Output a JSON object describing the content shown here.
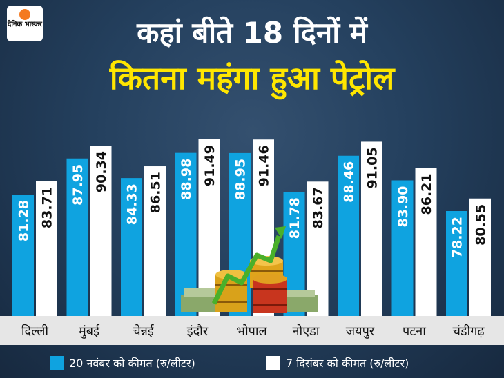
{
  "brand": {
    "logo_text": "दैनिक भास्कर"
  },
  "title_line1": "कहां बीते 18 दिनों में",
  "title_line2": "कितना महंगा हुआ पेट्रोल",
  "colors": {
    "series1": "#0fa3e0",
    "series2": "#ffffff",
    "title_accent": "#ffe600",
    "background": "#1e3451"
  },
  "chart_data": {
    "type": "bar",
    "categories": [
      "दिल्ली",
      "मुंबई",
      "चेन्नई",
      "इंदौर",
      "भोपाल",
      "नोएडा",
      "जयपुर",
      "पटना",
      "चंडीगढ़"
    ],
    "series": [
      {
        "name": "20 नवंबर को कीमत (रु/लीटर)",
        "values": [
          81.28,
          87.95,
          84.33,
          88.98,
          88.95,
          81.78,
          88.46,
          83.9,
          78.22
        ]
      },
      {
        "name": "7 दिसंबर को कीमत (रु/लीटर)",
        "values": [
          83.71,
          90.34,
          86.51,
          91.49,
          91.46,
          83.67,
          91.05,
          86.21,
          80.55
        ]
      }
    ],
    "value_labels": [
      [
        "81.28",
        "87.95",
        "84.33",
        "88.98",
        "88.95",
        "81.78",
        "88.46",
        "83.90",
        "78.22"
      ],
      [
        "83.71",
        "90.34",
        "86.51",
        "91.49",
        "91.46",
        "83.67",
        "91.05",
        "86.21",
        "80.55"
      ]
    ],
    "legend_position": "bottom",
    "grid": false
  }
}
